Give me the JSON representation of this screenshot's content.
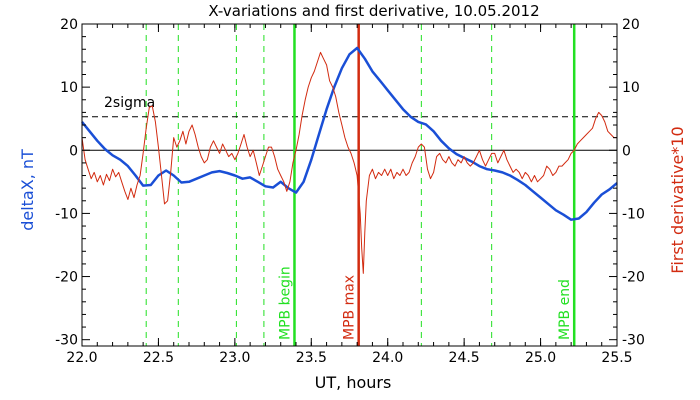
{
  "chart_data": {
    "type": "line",
    "title": "X-variations and first derivative, 10.05.2012",
    "xlabel": "UT, hours",
    "ylabel_left": "deltaX, nT",
    "ylabel_right": "First derivative*10",
    "xlim": [
      22.0,
      25.5
    ],
    "ylim": [
      -31,
      20
    ],
    "x_ticks": [
      "22.0",
      "22.5",
      "23.0",
      "23.5",
      "24.0",
      "24.5",
      "25.0",
      "25.5"
    ],
    "x_tick_values": [
      22.0,
      22.5,
      23.0,
      23.5,
      24.0,
      24.5,
      25.0,
      25.5
    ],
    "y_ticks": [
      "-30",
      "-20",
      "-10",
      "0",
      "10",
      "20"
    ],
    "y_tick_values": [
      -30,
      -20,
      -10,
      0,
      10,
      20
    ],
    "grid": false,
    "series": [
      {
        "name": "deltaX, nT",
        "color": "#1a4fd6",
        "points": [
          [
            22.0,
            4.5
          ],
          [
            22.05,
            3.0
          ],
          [
            22.1,
            1.5
          ],
          [
            22.15,
            0.2
          ],
          [
            22.2,
            -0.8
          ],
          [
            22.25,
            -1.5
          ],
          [
            22.3,
            -2.5
          ],
          [
            22.35,
            -4.0
          ],
          [
            22.4,
            -5.6
          ],
          [
            22.45,
            -5.5
          ],
          [
            22.5,
            -4.0
          ],
          [
            22.55,
            -3.2
          ],
          [
            22.6,
            -4.0
          ],
          [
            22.65,
            -5.1
          ],
          [
            22.7,
            -5.0
          ],
          [
            22.75,
            -4.5
          ],
          [
            22.8,
            -4.0
          ],
          [
            22.85,
            -3.5
          ],
          [
            22.9,
            -3.3
          ],
          [
            22.95,
            -3.6
          ],
          [
            23.0,
            -4.0
          ],
          [
            23.05,
            -4.5
          ],
          [
            23.1,
            -4.3
          ],
          [
            23.15,
            -5.0
          ],
          [
            23.2,
            -5.7
          ],
          [
            23.25,
            -5.9
          ],
          [
            23.3,
            -5.0
          ],
          [
            23.35,
            -6.0
          ],
          [
            23.4,
            -6.7
          ],
          [
            23.45,
            -5.0
          ],
          [
            23.5,
            -1.5
          ],
          [
            23.55,
            2.5
          ],
          [
            23.6,
            6.5
          ],
          [
            23.65,
            10.0
          ],
          [
            23.7,
            13.0
          ],
          [
            23.75,
            15.2
          ],
          [
            23.8,
            16.2
          ],
          [
            23.85,
            14.5
          ],
          [
            23.9,
            12.5
          ],
          [
            23.95,
            11.0
          ],
          [
            24.0,
            9.5
          ],
          [
            24.05,
            8.0
          ],
          [
            24.1,
            6.5
          ],
          [
            24.15,
            5.3
          ],
          [
            24.2,
            4.5
          ],
          [
            24.25,
            4.1
          ],
          [
            24.3,
            3.0
          ],
          [
            24.35,
            1.5
          ],
          [
            24.4,
            0.3
          ],
          [
            24.45,
            -0.6
          ],
          [
            24.5,
            -1.2
          ],
          [
            24.55,
            -1.8
          ],
          [
            24.6,
            -2.5
          ],
          [
            24.65,
            -3.0
          ],
          [
            24.7,
            -3.2
          ],
          [
            24.75,
            -3.5
          ],
          [
            24.8,
            -4.0
          ],
          [
            24.85,
            -4.7
          ],
          [
            24.9,
            -5.5
          ],
          [
            24.95,
            -6.5
          ],
          [
            25.0,
            -7.5
          ],
          [
            25.05,
            -8.5
          ],
          [
            25.1,
            -9.5
          ],
          [
            25.15,
            -10.2
          ],
          [
            25.2,
            -11.0
          ],
          [
            25.25,
            -10.8
          ],
          [
            25.3,
            -9.8
          ],
          [
            25.35,
            -8.3
          ],
          [
            25.4,
            -7.0
          ],
          [
            25.45,
            -6.2
          ],
          [
            25.5,
            -5.2
          ]
        ]
      },
      {
        "name": "First derivative*10",
        "color": "#d22b10",
        "points": [
          [
            22.0,
            2.0
          ],
          [
            22.02,
            -1.5
          ],
          [
            22.04,
            -3.0
          ],
          [
            22.06,
            -4.5
          ],
          [
            22.08,
            -3.5
          ],
          [
            22.1,
            -5.0
          ],
          [
            22.12,
            -4.0
          ],
          [
            22.14,
            -5.5
          ],
          [
            22.16,
            -3.8
          ],
          [
            22.18,
            -4.8
          ],
          [
            22.2,
            -3.0
          ],
          [
            22.22,
            -4.2
          ],
          [
            22.24,
            -3.5
          ],
          [
            22.26,
            -5.0
          ],
          [
            22.28,
            -6.5
          ],
          [
            22.3,
            -7.8
          ],
          [
            22.32,
            -6.0
          ],
          [
            22.34,
            -7.5
          ],
          [
            22.36,
            -5.5
          ],
          [
            22.38,
            -4.0
          ],
          [
            22.4,
            -0.5
          ],
          [
            22.42,
            3.5
          ],
          [
            22.44,
            6.8
          ],
          [
            22.46,
            7.0
          ],
          [
            22.48,
            4.5
          ],
          [
            22.5,
            0.5
          ],
          [
            22.52,
            -4.0
          ],
          [
            22.54,
            -8.5
          ],
          [
            22.56,
            -8.0
          ],
          [
            22.58,
            -3.5
          ],
          [
            22.6,
            2.0
          ],
          [
            22.62,
            0.5
          ],
          [
            22.64,
            1.5
          ],
          [
            22.66,
            3.0
          ],
          [
            22.68,
            1.0
          ],
          [
            22.7,
            3.0
          ],
          [
            22.72,
            4.0
          ],
          [
            22.74,
            2.5
          ],
          [
            22.76,
            0.5
          ],
          [
            22.78,
            -1.0
          ],
          [
            22.8,
            -2.0
          ],
          [
            22.82,
            -1.5
          ],
          [
            22.84,
            0.5
          ],
          [
            22.86,
            1.5
          ],
          [
            22.88,
            0.5
          ],
          [
            22.9,
            -0.5
          ],
          [
            22.92,
            1.0
          ],
          [
            22.94,
            0.0
          ],
          [
            22.96,
            -1.0
          ],
          [
            22.98,
            -0.5
          ],
          [
            23.0,
            -1.5
          ],
          [
            23.02,
            -0.5
          ],
          [
            23.04,
            1.0
          ],
          [
            23.06,
            2.5
          ],
          [
            23.08,
            0.5
          ],
          [
            23.1,
            -1.0
          ],
          [
            23.12,
            0.0
          ],
          [
            23.14,
            -2.0
          ],
          [
            23.16,
            -4.0
          ],
          [
            23.18,
            -2.5
          ],
          [
            23.2,
            -1.0
          ],
          [
            23.22,
            0.5
          ],
          [
            23.24,
            0.5
          ],
          [
            23.26,
            -1.0
          ],
          [
            23.28,
            -3.0
          ],
          [
            23.3,
            -4.0
          ],
          [
            23.32,
            -5.0
          ],
          [
            23.34,
            -6.5
          ],
          [
            23.36,
            -5.0
          ],
          [
            23.38,
            -2.0
          ],
          [
            23.4,
            0.0
          ],
          [
            23.42,
            2.5
          ],
          [
            23.44,
            5.5
          ],
          [
            23.46,
            8.0
          ],
          [
            23.48,
            10.0
          ],
          [
            23.5,
            11.5
          ],
          [
            23.52,
            12.5
          ],
          [
            23.54,
            14.0
          ],
          [
            23.56,
            15.5
          ],
          [
            23.58,
            14.5
          ],
          [
            23.6,
            13.5
          ],
          [
            23.62,
            11.0
          ],
          [
            23.64,
            10.0
          ],
          [
            23.66,
            8.5
          ],
          [
            23.68,
            6.0
          ],
          [
            23.7,
            4.0
          ],
          [
            23.72,
            2.0
          ],
          [
            23.74,
            0.5
          ],
          [
            23.76,
            -0.5
          ],
          [
            23.78,
            -2.0
          ],
          [
            23.8,
            -4.0
          ],
          [
            23.82,
            -10.0
          ],
          [
            23.83,
            -15.5
          ],
          [
            23.84,
            -19.5
          ],
          [
            23.85,
            -13.0
          ],
          [
            23.86,
            -8.0
          ],
          [
            23.88,
            -4.0
          ],
          [
            23.9,
            -3.0
          ],
          [
            23.92,
            -4.5
          ],
          [
            23.94,
            -3.5
          ],
          [
            23.96,
            -4.0
          ],
          [
            23.98,
            -3.0
          ],
          [
            24.0,
            -4.0
          ],
          [
            24.02,
            -3.0
          ],
          [
            24.04,
            -4.5
          ],
          [
            24.06,
            -3.5
          ],
          [
            24.08,
            -4.0
          ],
          [
            24.1,
            -3.0
          ],
          [
            24.12,
            -4.0
          ],
          [
            24.14,
            -3.5
          ],
          [
            24.16,
            -2.0
          ],
          [
            24.18,
            -1.0
          ],
          [
            24.2,
            0.5
          ],
          [
            24.22,
            1.0
          ],
          [
            24.24,
            0.5
          ],
          [
            24.26,
            -3.0
          ],
          [
            24.28,
            -4.5
          ],
          [
            24.3,
            -3.5
          ],
          [
            24.32,
            -1.0
          ],
          [
            24.34,
            -0.5
          ],
          [
            24.36,
            -1.5
          ],
          [
            24.38,
            -2.0
          ],
          [
            24.4,
            -1.0
          ],
          [
            24.42,
            -2.0
          ],
          [
            24.44,
            -2.5
          ],
          [
            24.46,
            -1.5
          ],
          [
            24.48,
            -2.0
          ],
          [
            24.5,
            -1.0
          ],
          [
            24.52,
            -2.0
          ],
          [
            24.54,
            -2.5
          ],
          [
            24.56,
            -2.0
          ],
          [
            24.58,
            -1.0
          ],
          [
            24.6,
            0.0
          ],
          [
            24.62,
            -1.5
          ],
          [
            24.64,
            -2.5
          ],
          [
            24.66,
            -1.5
          ],
          [
            24.68,
            -0.5
          ],
          [
            24.7,
            -0.5
          ],
          [
            24.72,
            -2.0
          ],
          [
            24.74,
            -1.0
          ],
          [
            24.76,
            0.0
          ],
          [
            24.78,
            -1.5
          ],
          [
            24.8,
            -2.5
          ],
          [
            24.82,
            -3.5
          ],
          [
            24.84,
            -3.0
          ],
          [
            24.86,
            -3.5
          ],
          [
            24.88,
            -4.5
          ],
          [
            24.9,
            -3.5
          ],
          [
            24.92,
            -4.0
          ],
          [
            24.94,
            -5.0
          ],
          [
            24.96,
            -4.0
          ],
          [
            24.98,
            -5.0
          ],
          [
            25.0,
            -4.5
          ],
          [
            25.02,
            -4.0
          ],
          [
            25.04,
            -2.5
          ],
          [
            25.06,
            -3.0
          ],
          [
            25.08,
            -4.0
          ],
          [
            25.1,
            -3.5
          ],
          [
            25.12,
            -2.5
          ],
          [
            25.14,
            -2.5
          ],
          [
            25.16,
            -2.0
          ],
          [
            25.18,
            -1.5
          ],
          [
            25.2,
            -0.5
          ],
          [
            25.22,
            0.0
          ],
          [
            25.24,
            1.0
          ],
          [
            25.26,
            1.5
          ],
          [
            25.28,
            2.0
          ],
          [
            25.3,
            2.5
          ],
          [
            25.32,
            3.0
          ],
          [
            25.34,
            3.5
          ],
          [
            25.36,
            5.0
          ],
          [
            25.38,
            6.0
          ],
          [
            25.4,
            5.5
          ],
          [
            25.42,
            4.5
          ],
          [
            25.44,
            3.0
          ],
          [
            25.46,
            2.5
          ],
          [
            25.48,
            2.0
          ],
          [
            25.5,
            2.0
          ]
        ]
      }
    ],
    "reference_lines": {
      "zero_line": 0,
      "sigma_line": {
        "value": 5.3,
        "label": "2sigma"
      },
      "dashed_verticals": [
        22.42,
        22.63,
        23.01,
        23.19,
        24.22,
        24.68
      ],
      "event_lines": [
        {
          "x": 23.39,
          "label": "MPB begin",
          "color": "#22e022"
        },
        {
          "x": 23.81,
          "label": "MPB max",
          "color": "#d22b10"
        },
        {
          "x": 25.22,
          "label": "MPB end",
          "color": "#22e022"
        }
      ]
    }
  }
}
